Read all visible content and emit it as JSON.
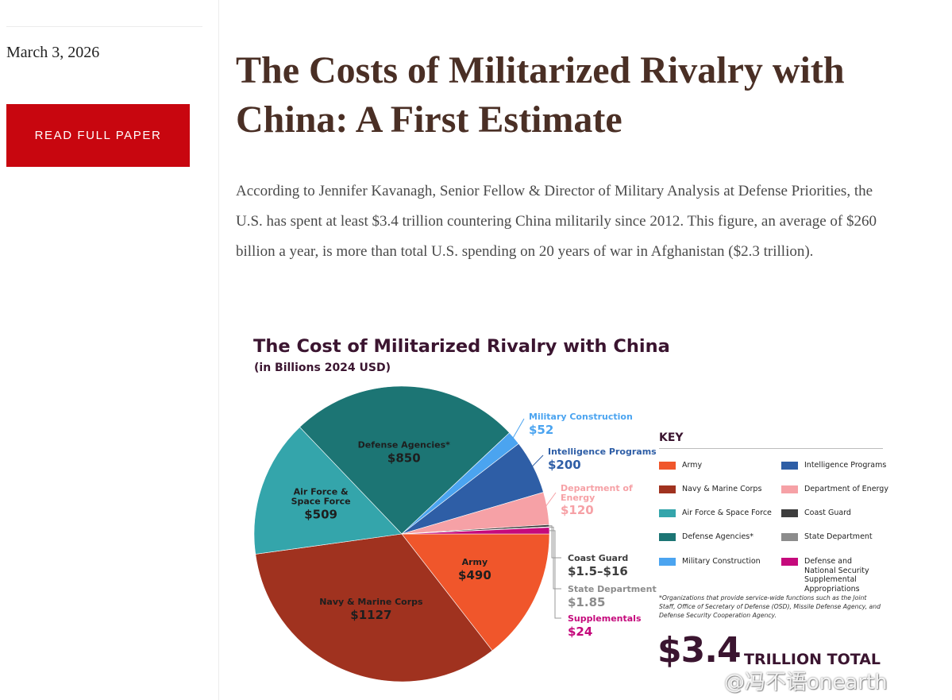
{
  "sidebar": {
    "date": "March 3, 2026",
    "read_button": "READ FULL PAPER"
  },
  "article": {
    "title": "The Costs of Militarized Rivalry with China: A First Estimate",
    "intro": "According to Jennifer Kavanagh, Senior Fellow & Director of Military Analysis at Defense Priorities, the U.S. has spent at least $3.4 trillion countering China militarily since 2012. This figure, an average of $260 billion a year, is more than total U.S. spending on 20 years of war in Afghanistan ($2.3 trillion)."
  },
  "chart_data": {
    "type": "pie",
    "title": "The Cost of Militarized Rivalry with China",
    "subtitle": "(in Billions 2024 USD)",
    "slices": [
      {
        "name": "Army",
        "line1": "Army",
        "line2": "",
        "display": "$490",
        "value": 490,
        "color": "#f0562b"
      },
      {
        "name": "Navy & Marine Corps",
        "line1": "Navy & Marine Corps",
        "line2": "",
        "display": "$1127",
        "value": 1127,
        "color": "#a0321f"
      },
      {
        "name": "Air Force & Space Force",
        "line1": "Air Force &",
        "line2": "Space Force",
        "display": "$509",
        "value": 509,
        "color": "#34a5ab"
      },
      {
        "name": "Defense Agencies*",
        "line1": "Defense Agencies*",
        "line2": "",
        "display": "$850",
        "value": 850,
        "color": "#1c7574"
      },
      {
        "name": "Military Construction",
        "line1": "Military Construction",
        "line2": "",
        "display": "$52",
        "value": 52,
        "color": "#4ba4f0"
      },
      {
        "name": "Intelligence Programs",
        "line1": "Intelligence Programs",
        "line2": "",
        "display": "$200",
        "value": 200,
        "color": "#2e5ea6"
      },
      {
        "name": "Department of Energy",
        "line1": "Department of",
        "line2": "Energy",
        "display": "$120",
        "value": 120,
        "color": "#f6a1a6"
      },
      {
        "name": "Coast Guard",
        "line1": "Coast Guard",
        "line2": "",
        "display": "$1.5–$16",
        "value": 8,
        "color": "#3e3e3e"
      },
      {
        "name": "State Department",
        "line1": "State Department",
        "line2": "",
        "display": "$1.85",
        "value": 1.85,
        "color": "#8c8c8c"
      },
      {
        "name": "Supplementals",
        "line1": "Supplementals",
        "line2": "",
        "display": "$24",
        "value": 24,
        "color": "#c50a7c"
      }
    ],
    "key_title": "KEY",
    "key": [
      {
        "label": "Army",
        "color": "#f0562b"
      },
      {
        "label": "Navy & Marine Corps",
        "color": "#a0321f"
      },
      {
        "label": "Air Force & Space Force",
        "color": "#34a5ab"
      },
      {
        "label": "Defense Agencies*",
        "color": "#1c7574"
      },
      {
        "label": "Military Construction",
        "color": "#4ba4f0"
      },
      {
        "label": "Intelligence Programs",
        "color": "#2e5ea6"
      },
      {
        "label": "Department of Energy",
        "color": "#f6a1a6"
      },
      {
        "label": "Coast Guard",
        "color": "#3e3e3e"
      },
      {
        "label": "State Department",
        "color": "#8c8c8c"
      },
      {
        "label": "Defense and National Security Supplemental Appropriations",
        "color": "#c50a7c"
      }
    ],
    "footnote": "*Organizations that provide service-wide functions such as the Joint Staff, Office of Secretary of Defense (OSD), Missile Defense Agency, and Defense Security Cooperation Agency.",
    "total_amount": "$3.4",
    "total_label": "TRILLION TOTAL"
  },
  "watermark": "@冯不语onearth"
}
